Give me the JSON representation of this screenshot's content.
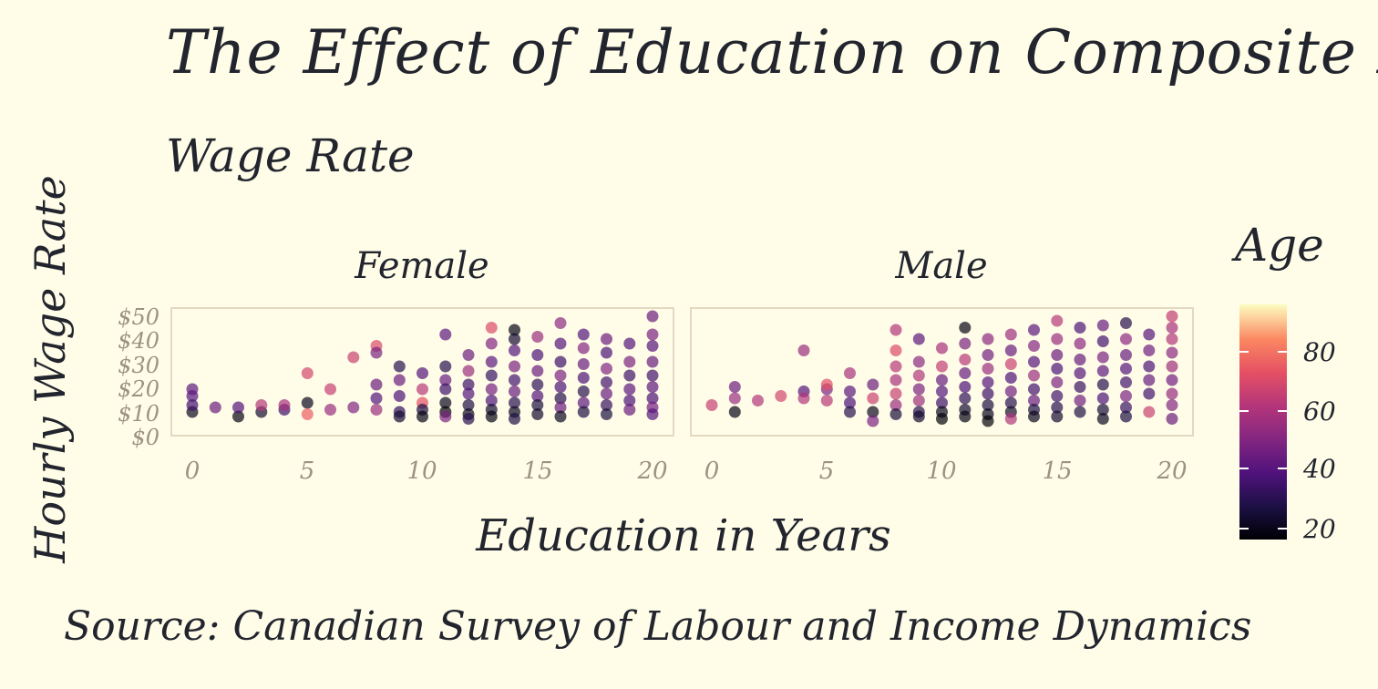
{
  "title": "The Effect of Education on Composite Hourly",
  "title_line2": "Wage Rate",
  "caption": "Source: Canadian Survey of Labour and Income Dynamics",
  "colors": {
    "background": "#fffde8",
    "panel_border": "#e3d9c0",
    "axis_text": "#9c9183",
    "text": "#22252e"
  },
  "chart_data": {
    "type": "scatter",
    "facets": [
      "Female",
      "Male"
    ],
    "xlabel": "Education in Years",
    "ylabel": "Hourly Wage Rate",
    "xlim": [
      0,
      20
    ],
    "ylim": [
      0,
      50
    ],
    "x_ticks": [
      "0",
      "5",
      "10",
      "15",
      "20"
    ],
    "y_ticks": [
      "$0",
      "$10",
      "$20",
      "$30",
      "$40",
      "$50"
    ],
    "color_legend": {
      "title": "Age",
      "range": [
        17,
        95
      ],
      "ticks": [
        "20",
        "40",
        "60",
        "80"
      ],
      "palette": "magma"
    },
    "grid": false,
    "legend_position": "right",
    "series": [
      {
        "facet": "Female",
        "points": [
          [
            0,
            8,
            22
          ],
          [
            0,
            11,
            36
          ],
          [
            0,
            15,
            40
          ],
          [
            0,
            18,
            42
          ],
          [
            1,
            10,
            45
          ],
          [
            2,
            6,
            20
          ],
          [
            2,
            10,
            40
          ],
          [
            3,
            8,
            25
          ],
          [
            3,
            11,
            62
          ],
          [
            4,
            9,
            35
          ],
          [
            4,
            11,
            58
          ],
          [
            5,
            12,
            22
          ],
          [
            5,
            25,
            68
          ],
          [
            5,
            7,
            75
          ],
          [
            6,
            18,
            65
          ],
          [
            6,
            9,
            55
          ],
          [
            7,
            32,
            66
          ],
          [
            7,
            10,
            50
          ],
          [
            8,
            37,
            70
          ],
          [
            8,
            34,
            48
          ],
          [
            8,
            20,
            45
          ],
          [
            8,
            14,
            40
          ],
          [
            8,
            9,
            55
          ],
          [
            9,
            28,
            30
          ],
          [
            9,
            22,
            45
          ],
          [
            9,
            15,
            38
          ],
          [
            9,
            8,
            32
          ],
          [
            9,
            6,
            25
          ],
          [
            10,
            25,
            40
          ],
          [
            10,
            18,
            62
          ],
          [
            10,
            12,
            72
          ],
          [
            10,
            9,
            28
          ],
          [
            10,
            6,
            20
          ],
          [
            11,
            42,
            42
          ],
          [
            11,
            28,
            30
          ],
          [
            11,
            22,
            44
          ],
          [
            11,
            18,
            35
          ],
          [
            11,
            12,
            22
          ],
          [
            11,
            8,
            18
          ],
          [
            11,
            6,
            48
          ],
          [
            12,
            33,
            45
          ],
          [
            12,
            26,
            55
          ],
          [
            12,
            20,
            35
          ],
          [
            12,
            16,
            40
          ],
          [
            12,
            11,
            28
          ],
          [
            12,
            7,
            22
          ],
          [
            12,
            5,
            30
          ],
          [
            13,
            45,
            70
          ],
          [
            13,
            38,
            50
          ],
          [
            13,
            30,
            42
          ],
          [
            13,
            24,
            34
          ],
          [
            13,
            18,
            47
          ],
          [
            13,
            13,
            38
          ],
          [
            13,
            9,
            25
          ],
          [
            13,
            6,
            20
          ],
          [
            14,
            44,
            20
          ],
          [
            14,
            40,
            25
          ],
          [
            14,
            35,
            40
          ],
          [
            14,
            28,
            48
          ],
          [
            14,
            22,
            36
          ],
          [
            14,
            17,
            44
          ],
          [
            14,
            12,
            30
          ],
          [
            14,
            8,
            22
          ],
          [
            14,
            5,
            28
          ],
          [
            15,
            41,
            55
          ],
          [
            15,
            33,
            38
          ],
          [
            15,
            26,
            45
          ],
          [
            15,
            20,
            32
          ],
          [
            15,
            15,
            40
          ],
          [
            15,
            11,
            27
          ],
          [
            15,
            7,
            24
          ],
          [
            16,
            47,
            52
          ],
          [
            16,
            38,
            40
          ],
          [
            16,
            30,
            35
          ],
          [
            16,
            24,
            48
          ],
          [
            16,
            19,
            38
          ],
          [
            16,
            14,
            30
          ],
          [
            16,
            10,
            45
          ],
          [
            16,
            6,
            22
          ],
          [
            17,
            42,
            40
          ],
          [
            17,
            36,
            50
          ],
          [
            17,
            29,
            44
          ],
          [
            17,
            23,
            38
          ],
          [
            17,
            17,
            30
          ],
          [
            17,
            12,
            42
          ],
          [
            17,
            8,
            28
          ],
          [
            18,
            40,
            45
          ],
          [
            18,
            34,
            38
          ],
          [
            18,
            27,
            50
          ],
          [
            18,
            21,
            36
          ],
          [
            18,
            16,
            44
          ],
          [
            18,
            11,
            33
          ],
          [
            18,
            7,
            27
          ],
          [
            19,
            38,
            40
          ],
          [
            19,
            30,
            48
          ],
          [
            19,
            24,
            35
          ],
          [
            19,
            18,
            42
          ],
          [
            19,
            13,
            38
          ],
          [
            19,
            9,
            45
          ],
          [
            20,
            50,
            45
          ],
          [
            20,
            42,
            48
          ],
          [
            20,
            37,
            40
          ],
          [
            20,
            30,
            44
          ],
          [
            20,
            24,
            36
          ],
          [
            20,
            19,
            42
          ],
          [
            20,
            14,
            38
          ],
          [
            20,
            10,
            46
          ],
          [
            20,
            7,
            40
          ]
        ]
      },
      {
        "facet": "Male",
        "points": [
          [
            0,
            11,
            65
          ],
          [
            1,
            8,
            20
          ],
          [
            1,
            14,
            55
          ],
          [
            1,
            19,
            45
          ],
          [
            2,
            13,
            60
          ],
          [
            3,
            15,
            68
          ],
          [
            4,
            35,
            55
          ],
          [
            4,
            17,
            40
          ],
          [
            4,
            14,
            60
          ],
          [
            5,
            18,
            48
          ],
          [
            5,
            13,
            62
          ],
          [
            5,
            20,
            72
          ],
          [
            6,
            25,
            58
          ],
          [
            6,
            17,
            42
          ],
          [
            6,
            12,
            38
          ],
          [
            6,
            8,
            30
          ],
          [
            7,
            20,
            45
          ],
          [
            7,
            14,
            66
          ],
          [
            7,
            8,
            22
          ],
          [
            7,
            4,
            48
          ],
          [
            8,
            44,
            60
          ],
          [
            8,
            35,
            70
          ],
          [
            8,
            28,
            62
          ],
          [
            8,
            22,
            58
          ],
          [
            8,
            16,
            65
          ],
          [
            8,
            11,
            55
          ],
          [
            8,
            7,
            26
          ],
          [
            9,
            40,
            42
          ],
          [
            9,
            30,
            52
          ],
          [
            9,
            24,
            60
          ],
          [
            9,
            18,
            48
          ],
          [
            9,
            13,
            56
          ],
          [
            9,
            8,
            30
          ],
          [
            9,
            6,
            24
          ],
          [
            10,
            36,
            58
          ],
          [
            10,
            28,
            64
          ],
          [
            10,
            22,
            44
          ],
          [
            10,
            17,
            40
          ],
          [
            10,
            12,
            35
          ],
          [
            10,
            8,
            22
          ],
          [
            10,
            5,
            18
          ],
          [
            11,
            45,
            20
          ],
          [
            11,
            38,
            48
          ],
          [
            11,
            31,
            62
          ],
          [
            11,
            25,
            44
          ],
          [
            11,
            19,
            38
          ],
          [
            11,
            14,
            32
          ],
          [
            11,
            9,
            25
          ],
          [
            11,
            6,
            20
          ],
          [
            12,
            40,
            52
          ],
          [
            12,
            33,
            46
          ],
          [
            12,
            27,
            55
          ],
          [
            12,
            21,
            40
          ],
          [
            12,
            16,
            35
          ],
          [
            12,
            11,
            28
          ],
          [
            12,
            7,
            22
          ],
          [
            12,
            4,
            18
          ],
          [
            13,
            42,
            56
          ],
          [
            13,
            35,
            44
          ],
          [
            13,
            29,
            66
          ],
          [
            13,
            23,
            38
          ],
          [
            13,
            17,
            46
          ],
          [
            13,
            12,
            30
          ],
          [
            13,
            8,
            24
          ],
          [
            13,
            5,
            60
          ],
          [
            14,
            44,
            42
          ],
          [
            14,
            37,
            50
          ],
          [
            14,
            30,
            40
          ],
          [
            14,
            24,
            55
          ],
          [
            14,
            18,
            36
          ],
          [
            14,
            13,
            44
          ],
          [
            14,
            9,
            28
          ],
          [
            14,
            6,
            22
          ],
          [
            15,
            48,
            62
          ],
          [
            15,
            40,
            55
          ],
          [
            15,
            33,
            45
          ],
          [
            15,
            27,
            38
          ],
          [
            15,
            21,
            48
          ],
          [
            15,
            15,
            36
          ],
          [
            15,
            10,
            30
          ],
          [
            15,
            6,
            25
          ],
          [
            16,
            45,
            38
          ],
          [
            16,
            38,
            52
          ],
          [
            16,
            31,
            44
          ],
          [
            16,
            25,
            40
          ],
          [
            16,
            19,
            34
          ],
          [
            16,
            13,
            46
          ],
          [
            16,
            8,
            28
          ],
          [
            17,
            46,
            44
          ],
          [
            17,
            39,
            36
          ],
          [
            17,
            32,
            48
          ],
          [
            17,
            26,
            42
          ],
          [
            17,
            20,
            30
          ],
          [
            17,
            14,
            38
          ],
          [
            17,
            9,
            26
          ],
          [
            17,
            5,
            22
          ],
          [
            18,
            47,
            30
          ],
          [
            18,
            40,
            52
          ],
          [
            18,
            33,
            44
          ],
          [
            18,
            27,
            40
          ],
          [
            18,
            21,
            36
          ],
          [
            18,
            15,
            48
          ],
          [
            18,
            10,
            34
          ],
          [
            18,
            6,
            28
          ],
          [
            19,
            42,
            40
          ],
          [
            19,
            35,
            46
          ],
          [
            19,
            28,
            38
          ],
          [
            19,
            22,
            44
          ],
          [
            19,
            16,
            36
          ],
          [
            19,
            8,
            66
          ],
          [
            20,
            50,
            64
          ],
          [
            20,
            45,
            58
          ],
          [
            20,
            40,
            60
          ],
          [
            20,
            34,
            52
          ],
          [
            20,
            28,
            56
          ],
          [
            20,
            22,
            46
          ],
          [
            20,
            16,
            54
          ],
          [
            20,
            11,
            50
          ],
          [
            20,
            5,
            45
          ]
        ]
      }
    ]
  }
}
